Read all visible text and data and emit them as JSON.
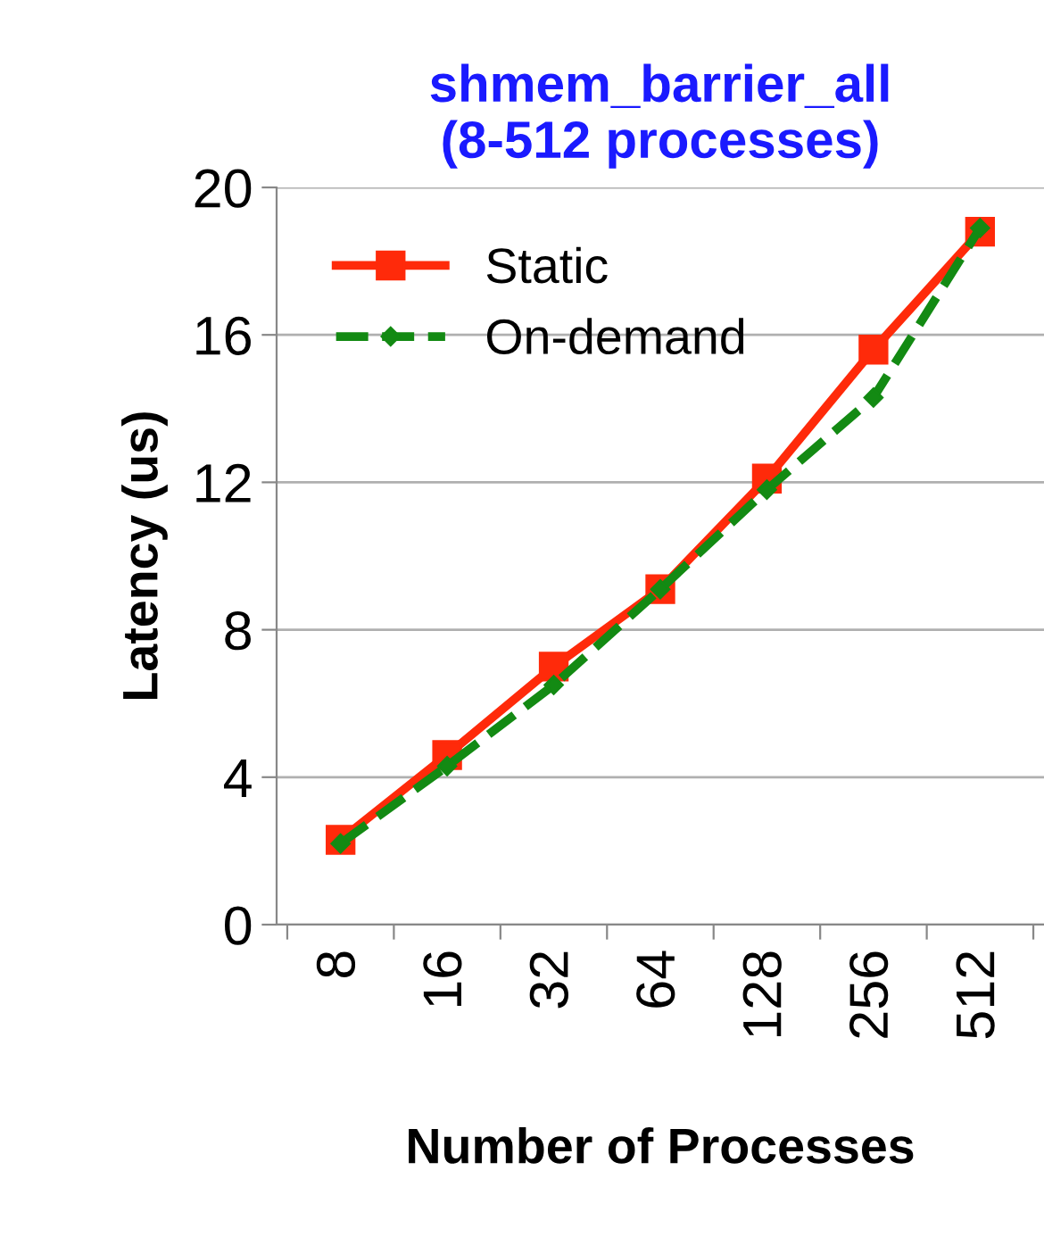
{
  "chart_data": {
    "type": "line",
    "title": "shmem_barrier_all\n(8-512 processes)",
    "xlabel": "Number of Processes",
    "ylabel": "Latency (us)",
    "categories": [
      "8",
      "16",
      "32",
      "64",
      "128",
      "256",
      "512"
    ],
    "series": [
      {
        "name": "Static",
        "color": "#ff2a0a",
        "marker": "square",
        "line_style": "solid",
        "values": [
          2.3,
          4.6,
          7.0,
          9.1,
          12.1,
          15.6,
          18.8
        ]
      },
      {
        "name": "On-demand",
        "color": "#138a13",
        "marker": "diamond",
        "line_style": "dashed",
        "values": [
          2.2,
          4.3,
          6.5,
          9.1,
          11.8,
          14.3,
          18.9
        ]
      }
    ],
    "ylim": [
      0,
      20
    ],
    "yticks": [
      0,
      4,
      8,
      12,
      16,
      20
    ],
    "grid": "y",
    "legend": "top left"
  }
}
